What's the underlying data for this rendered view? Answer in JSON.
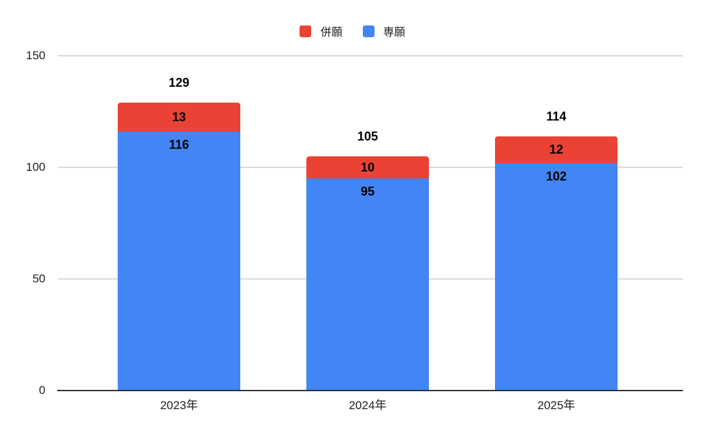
{
  "colors": {
    "background": "#ffffff",
    "series_red": "#ea4335",
    "series_blue": "#4285f4",
    "gridline": "#dadada",
    "axis_line": "#333333",
    "data_label": "#000000",
    "axis_text": "#212121"
  },
  "legend": {
    "items": [
      {
        "label": "併願",
        "color": "#ea4335"
      },
      {
        "label": "専願",
        "color": "#4285f4"
      }
    ]
  },
  "chart_data": {
    "type": "bar",
    "stacked": true,
    "title": "",
    "xlabel": "",
    "ylabel": "",
    "categories": [
      "2023年",
      "2024年",
      "2025年"
    ],
    "series": [
      {
        "name": "専願",
        "color": "#4285f4",
        "values": [
          116,
          95,
          102
        ]
      },
      {
        "name": "併願",
        "color": "#ea4335",
        "values": [
          13,
          10,
          12
        ]
      }
    ],
    "totals": [
      129,
      105,
      114
    ],
    "ylim": [
      0,
      150
    ],
    "yticks": [
      0,
      50,
      100,
      150
    ],
    "grid": true,
    "legend_position": "top-center"
  }
}
